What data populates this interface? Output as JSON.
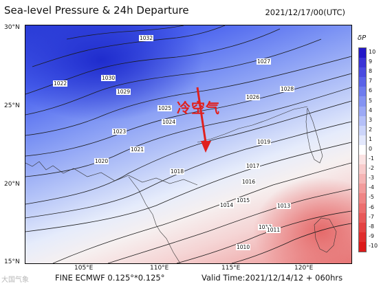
{
  "header": {
    "title": "Sea-level Pressure & 24h Departure",
    "timestamp": "2021/12/17/00(UTC)"
  },
  "annotation": {
    "text": "冷空气",
    "color": "#e0201e"
  },
  "axes": {
    "lat_labels": [
      "30°N",
      "25°N",
      "20°N",
      "15°N"
    ],
    "lon_labels": [
      "105°E",
      "110°E",
      "115°E",
      "120°E"
    ]
  },
  "isobar_labels": [
    "1032",
    "1027",
    "1026",
    "1025",
    "1024",
    "1023",
    "1022",
    "1021",
    "1020",
    "1019",
    "1018",
    "1017",
    "1016",
    "1015",
    "1014",
    "1013",
    "1012",
    "1011",
    "1010",
    "1028",
    "1029",
    "1030"
  ],
  "colorbar": {
    "title": "δP",
    "ticks": [
      "10",
      "9",
      "8",
      "7",
      "6",
      "5",
      "4",
      "3",
      "2",
      "1",
      "0",
      "-1",
      "-2",
      "-3",
      "-4",
      "-5",
      "-6",
      "-7",
      "-8",
      "-9",
      "-10"
    ],
    "colors": [
      "#2418c8",
      "#3a33d6",
      "#4a4be0",
      "#5a63e8",
      "#6e7cee",
      "#8493f2",
      "#9ca9f5",
      "#b5c0f8",
      "#ccd5fa",
      "#e3e8fc",
      "#ffffff",
      "#fbe3e3",
      "#f8cccc",
      "#f5b5b5",
      "#f29c9c",
      "#ef8585",
      "#ec6f6f",
      "#e85959",
      "#e44343",
      "#e02e2e",
      "#dc1a1a"
    ]
  },
  "footer": {
    "source": "FINE ECMWF 0.125°*0.125°",
    "valid": "Valid Time:2021/12/14/12 + 060hrs",
    "watermark": "大国气象"
  }
}
